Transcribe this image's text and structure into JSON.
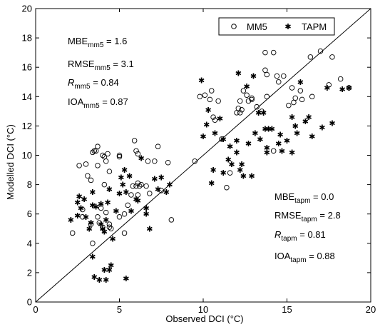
{
  "chart_data": {
    "type": "scatter",
    "xlabel": "Observed DCI (°C)",
    "ylabel": "Modelled DCI (°C)",
    "xlim": [
      0,
      20
    ],
    "ylim": [
      0,
      20
    ],
    "xticks": [
      "0",
      "5",
      "10",
      "15",
      "20"
    ],
    "yticks": [
      "0",
      "2",
      "4",
      "6",
      "8",
      "10",
      "12",
      "14",
      "16",
      "18",
      "20"
    ],
    "grid": false,
    "legend_position": "top-right",
    "reference_line": {
      "x": [
        0,
        20
      ],
      "y": [
        0,
        20
      ]
    },
    "legend": [
      {
        "name": "MM5",
        "marker": "open-circle"
      },
      {
        "name": "TAPM",
        "marker": "asterisk"
      }
    ],
    "stats": {
      "mm5": [
        {
          "base": "MBE",
          "sub": "mm5",
          "value": " = 1.6"
        },
        {
          "base": "RMSE",
          "sub": "mm5",
          "value": " = 3.1"
        },
        {
          "base": "R",
          "sub": "mm5",
          "value": " = 0.84"
        },
        {
          "base": "IOA",
          "sub": "mm5",
          "value": " = 0.87"
        }
      ],
      "tapm": [
        {
          "base": "MBE",
          "sub": "tapm",
          "value": " = 0.0"
        },
        {
          "base": "RMSE",
          "sub": "tapm",
          "value": " = 2.8"
        },
        {
          "base": "R",
          "sub": "tapm",
          "value": " = 0.81"
        },
        {
          "base": "IOA",
          "sub": "tapm",
          "value": " = 0.88"
        }
      ]
    },
    "series": [
      {
        "name": "MM5",
        "points": [
          [
            2.2,
            4.7
          ],
          [
            2.6,
            9.3
          ],
          [
            2.8,
            5.8
          ],
          [
            2.8,
            6.3
          ],
          [
            3.0,
            9.4
          ],
          [
            3.1,
            8.6
          ],
          [
            3.3,
            8.3
          ],
          [
            3.3,
            5.3
          ],
          [
            3.4,
            10.2
          ],
          [
            3.4,
            4.0
          ],
          [
            3.5,
            10.3
          ],
          [
            3.6,
            10.3
          ],
          [
            3.7,
            10.6
          ],
          [
            3.7,
            9.3
          ],
          [
            3.7,
            5.8
          ],
          [
            3.8,
            5.4
          ],
          [
            3.9,
            6.4
          ],
          [
            4.0,
            10.0
          ],
          [
            4.0,
            5.1
          ],
          [
            4.1,
            9.9
          ],
          [
            4.1,
            8.0
          ],
          [
            4.2,
            9.6
          ],
          [
            4.2,
            6.1
          ],
          [
            4.3,
            10.1
          ],
          [
            4.4,
            5.3
          ],
          [
            4.4,
            8.9
          ],
          [
            4.4,
            5.1
          ],
          [
            4.5,
            5.0
          ],
          [
            5.0,
            9.9
          ],
          [
            5.0,
            10.0
          ],
          [
            5.0,
            5.8
          ],
          [
            5.3,
            4.7
          ],
          [
            5.3,
            6.0
          ],
          [
            5.5,
            6.6
          ],
          [
            5.7,
            7.3
          ],
          [
            5.8,
            7.9
          ],
          [
            5.9,
            11.0
          ],
          [
            6.0,
            7.9
          ],
          [
            6.0,
            10.3
          ],
          [
            6.1,
            7.3
          ],
          [
            6.1,
            10.1
          ],
          [
            6.1,
            8.1
          ],
          [
            6.2,
            7.9
          ],
          [
            6.3,
            8.0
          ],
          [
            6.6,
            7.9
          ],
          [
            6.7,
            9.6
          ],
          [
            6.8,
            7.4
          ],
          [
            7.1,
            9.6
          ],
          [
            7.3,
            10.6
          ],
          [
            7.5,
            7.6
          ],
          [
            7.9,
            9.5
          ],
          [
            8.1,
            5.6
          ],
          [
            9.5,
            9.6
          ],
          [
            9.8,
            14.0
          ],
          [
            10.1,
            14.1
          ],
          [
            10.4,
            13.8
          ],
          [
            10.5,
            14.4
          ],
          [
            10.6,
            12.6
          ],
          [
            10.7,
            12.4
          ],
          [
            10.9,
            13.7
          ],
          [
            11.1,
            11.1
          ],
          [
            11.4,
            7.8
          ],
          [
            11.6,
            8.8
          ],
          [
            12.0,
            12.9
          ],
          [
            12.1,
            13.2
          ],
          [
            12.2,
            13.7
          ],
          [
            12.2,
            12.9
          ],
          [
            12.3,
            13.1
          ],
          [
            12.4,
            14.4
          ],
          [
            12.6,
            14.1
          ],
          [
            12.7,
            13.7
          ],
          [
            12.9,
            13.8
          ],
          [
            12.9,
            13.9
          ],
          [
            13.2,
            13.3
          ],
          [
            13.5,
            13.0
          ],
          [
            13.7,
            17.0
          ],
          [
            13.7,
            15.8
          ],
          [
            13.8,
            14.0
          ],
          [
            13.8,
            15.5
          ],
          [
            14.2,
            17.0
          ],
          [
            14.2,
            10.3
          ],
          [
            14.4,
            15.4
          ],
          [
            14.5,
            15.0
          ],
          [
            14.8,
            15.4
          ],
          [
            15.1,
            13.4
          ],
          [
            15.3,
            14.6
          ],
          [
            15.4,
            13.6
          ],
          [
            15.5,
            13.9
          ],
          [
            15.8,
            14.4
          ],
          [
            15.9,
            13.8
          ],
          [
            16.4,
            16.7
          ],
          [
            16.5,
            14.0
          ],
          [
            17.0,
            17.1
          ],
          [
            17.5,
            14.8
          ],
          [
            17.7,
            16.7
          ],
          [
            18.2,
            15.2
          ],
          [
            18.7,
            14.6
          ]
        ]
      },
      {
        "name": "TAPM",
        "points": [
          [
            2.1,
            5.6
          ],
          [
            2.5,
            5.9
          ],
          [
            2.5,
            6.8
          ],
          [
            2.6,
            7.2
          ],
          [
            2.7,
            6.4
          ],
          [
            2.9,
            7.0
          ],
          [
            3.0,
            5.8
          ],
          [
            3.2,
            5.0
          ],
          [
            3.3,
            5.4
          ],
          [
            3.4,
            6.6
          ],
          [
            3.4,
            7.5
          ],
          [
            3.4,
            3.1
          ],
          [
            3.5,
            1.7
          ],
          [
            3.6,
            6.5
          ],
          [
            3.8,
            1.5
          ],
          [
            3.9,
            5.3
          ],
          [
            3.9,
            6.7
          ],
          [
            4.0,
            5.0
          ],
          [
            4.1,
            4.8
          ],
          [
            4.1,
            2.2
          ],
          [
            4.2,
            1.5
          ],
          [
            4.2,
            5.6
          ],
          [
            4.3,
            6.8
          ],
          [
            4.4,
            7.7
          ],
          [
            4.4,
            2.2
          ],
          [
            4.5,
            2.5
          ],
          [
            4.6,
            4.3
          ],
          [
            4.8,
            6.2
          ],
          [
            5.0,
            7.4
          ],
          [
            5.1,
            8.5
          ],
          [
            5.2,
            8.0
          ],
          [
            5.3,
            9.0
          ],
          [
            5.4,
            1.6
          ],
          [
            5.4,
            7.5
          ],
          [
            5.6,
            8.6
          ],
          [
            5.7,
            6.2
          ],
          [
            6.0,
            7.0
          ],
          [
            6.1,
            6.9
          ],
          [
            6.3,
            9.8
          ],
          [
            6.6,
            6.4
          ],
          [
            6.6,
            6.0
          ],
          [
            6.8,
            5.0
          ],
          [
            7.1,
            8.4
          ],
          [
            7.3,
            7.7
          ],
          [
            7.5,
            8.5
          ],
          [
            7.8,
            7.5
          ],
          [
            8.0,
            8.0
          ],
          [
            9.9,
            15.1
          ],
          [
            10.0,
            11.3
          ],
          [
            10.2,
            12.1
          ],
          [
            10.3,
            13.1
          ],
          [
            10.5,
            8.1
          ],
          [
            10.6,
            9.0
          ],
          [
            10.7,
            11.5
          ],
          [
            11.0,
            12.5
          ],
          [
            11.2,
            8.8
          ],
          [
            11.2,
            11.1
          ],
          [
            11.5,
            9.7
          ],
          [
            11.6,
            10.6
          ],
          [
            11.7,
            9.4
          ],
          [
            12.0,
            10.2
          ],
          [
            12.0,
            11.0
          ],
          [
            12.1,
            15.6
          ],
          [
            12.2,
            9.0
          ],
          [
            12.3,
            9.4
          ],
          [
            12.4,
            8.6
          ],
          [
            12.6,
            14.7
          ],
          [
            12.7,
            10.8
          ],
          [
            12.9,
            8.6
          ],
          [
            13.0,
            15.4
          ],
          [
            13.1,
            11.5
          ],
          [
            13.3,
            12.9
          ],
          [
            13.4,
            11.1
          ],
          [
            13.6,
            12.9
          ],
          [
            13.7,
            11.8
          ],
          [
            13.8,
            10.2
          ],
          [
            13.8,
            10.5
          ],
          [
            13.9,
            11.8
          ],
          [
            14.1,
            11.8
          ],
          [
            14.5,
            10.8
          ],
          [
            14.6,
            11.4
          ],
          [
            14.7,
            10.3
          ],
          [
            15.0,
            11.0
          ],
          [
            15.3,
            10.2
          ],
          [
            15.3,
            12.6
          ],
          [
            15.5,
            12.0
          ],
          [
            15.6,
            11.5
          ],
          [
            15.8,
            15.0
          ],
          [
            16.1,
            12.3
          ],
          [
            16.3,
            12.6
          ],
          [
            16.5,
            11.3
          ],
          [
            17.1,
            11.9
          ],
          [
            17.4,
            14.6
          ],
          [
            17.7,
            12.2
          ],
          [
            18.3,
            14.5
          ],
          [
            18.7,
            14.6
          ]
        ]
      }
    ]
  }
}
